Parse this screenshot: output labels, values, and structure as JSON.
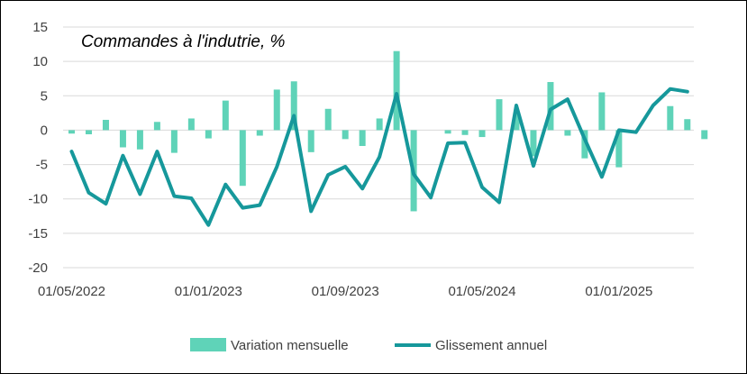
{
  "chart_data": {
    "type": "bar+line",
    "title": "Commandes à l'indutrie, %",
    "ylim": [
      -20,
      15
    ],
    "y_ticks": [
      15,
      10,
      5,
      0,
      -5,
      -10,
      -15,
      -20
    ],
    "y_tick_labels": [
      "15",
      "10",
      "5",
      "0",
      "-5",
      "-10",
      "-15",
      "-20"
    ],
    "x": [
      "2022-05",
      "2022-06",
      "2022-07",
      "2022-08",
      "2022-09",
      "2022-10",
      "2022-11",
      "2022-12",
      "2023-01",
      "2023-02",
      "2023-03",
      "2023-04",
      "2023-05",
      "2023-06",
      "2023-07",
      "2023-08",
      "2023-09",
      "2023-10",
      "2023-11",
      "2023-12",
      "2024-01",
      "2024-02",
      "2024-03",
      "2024-04",
      "2024-05",
      "2024-06",
      "2024-07",
      "2024-08",
      "2024-09",
      "2024-10",
      "2024-11",
      "2024-12",
      "2025-01",
      "2025-02",
      "2025-03",
      "2025-04",
      "2025-05",
      "2025-06",
      "2025-07"
    ],
    "x_tick_labels": [
      "01/05/2022",
      "01/01/2023",
      "01/09/2023",
      "01/05/2024",
      "01/01/2025"
    ],
    "x_tick_positions": [
      0,
      8,
      16,
      24,
      32
    ],
    "grid": "horizontal",
    "legend_position": "bottom",
    "series": [
      {
        "name": "Variation mensuelle",
        "type": "bar",
        "color": "#5fd3b8",
        "values": [
          -0.5,
          -0.6,
          1.5,
          -2.5,
          -2.8,
          1.2,
          -3.3,
          1.7,
          -1.2,
          4.3,
          -8.1,
          -0.8,
          5.9,
          7.1,
          -3.2,
          3.1,
          -1.3,
          -2.3,
          1.7,
          11.5,
          -11.8,
          0.0,
          -0.5,
          -0.7,
          -1.0,
          4.5,
          2.5,
          -3.8,
          7.0,
          -0.8,
          -4.1,
          5.5,
          -5.4,
          0.0,
          0.0,
          3.5,
          1.6,
          -1.3,
          0.0
        ]
      },
      {
        "name": "Glissement annuel",
        "type": "line",
        "color": "#16989b",
        "values": [
          -3.1,
          -9.1,
          -10.7,
          -3.7,
          -9.3,
          -3.1,
          -9.6,
          -9.9,
          -13.8,
          -7.9,
          -11.3,
          -10.9,
          -5.3,
          2.1,
          -11.8,
          -6.5,
          -5.3,
          -8.5,
          -3.9,
          5.3,
          -6.4,
          -9.8,
          -1.9,
          -1.8,
          -8.3,
          -10.5,
          3.6,
          -5.2,
          3.0,
          4.5,
          -1.3,
          -6.8,
          0.0,
          -0.3,
          3.6,
          6.0,
          5.6,
          null,
          null
        ]
      }
    ]
  }
}
